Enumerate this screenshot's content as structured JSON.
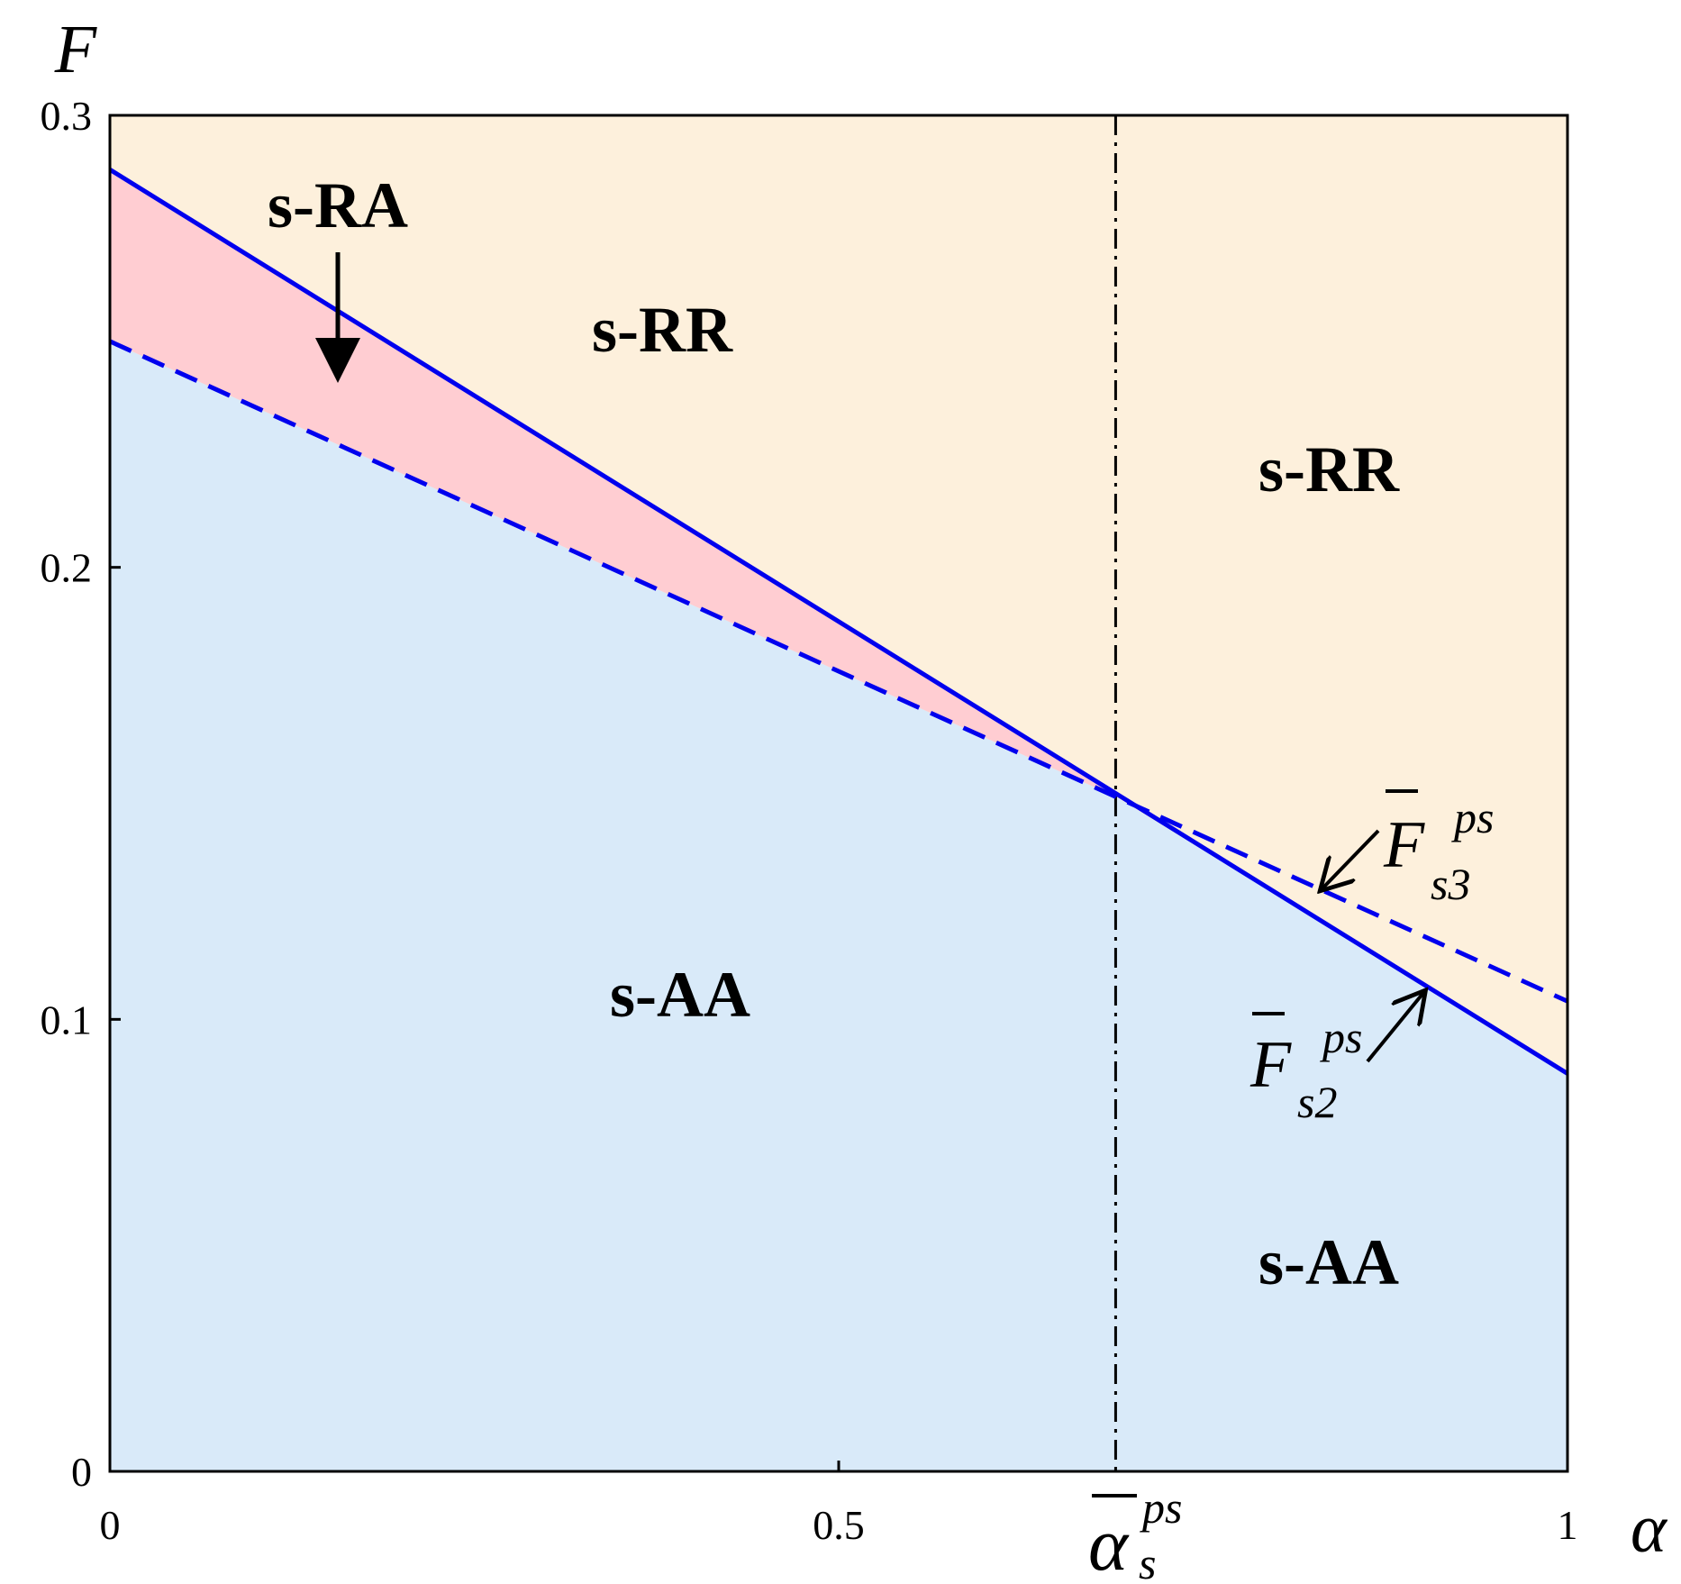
{
  "chart_data": {
    "type": "area",
    "xlabel": "α",
    "ylabel": "F",
    "xlim": [
      0,
      1
    ],
    "ylim": [
      0,
      0.3
    ],
    "x_ticks": [
      "0",
      "0.5",
      "1"
    ],
    "x_tick_values": [
      0,
      0.5,
      1
    ],
    "y_ticks": [
      "0",
      "0.1",
      "0.2",
      "0.3"
    ],
    "y_tick_values": [
      0,
      0.1,
      0.2,
      0.3
    ],
    "grid": false,
    "series": [
      {
        "name": "F̄ s2 ps",
        "style": "solid",
        "color": "#0000ee",
        "x": [
          0,
          1
        ],
        "y": [
          0.288,
          0.088
        ]
      },
      {
        "name": "F̄ s3 ps",
        "style": "dashed",
        "color": "#0000ee",
        "x": [
          0,
          1
        ],
        "y": [
          0.25,
          0.104
        ]
      }
    ],
    "threshold": {
      "name": "ᾱ s ps",
      "x": 0.69,
      "style": "dash-dot",
      "color": "#000000"
    },
    "threshold_label": {
      "base": "α",
      "sub": "s",
      "sup": "ps"
    },
    "curve_labels": [
      {
        "base": "F",
        "sub": "s3",
        "sup": "ps"
      },
      {
        "base": "F",
        "sub": "s2",
        "sup": "ps"
      }
    ],
    "regions": [
      {
        "label": "s-RA",
        "color": "#ffcdd2"
      },
      {
        "label": "s-RR",
        "color": "#fdf0dc"
      },
      {
        "label": "s-RR",
        "color": "#fdf0dc"
      },
      {
        "label": "s-AA",
        "color": "#d9eaf9"
      },
      {
        "label": "s-AA",
        "color": "#d9eaf9"
      }
    ]
  }
}
